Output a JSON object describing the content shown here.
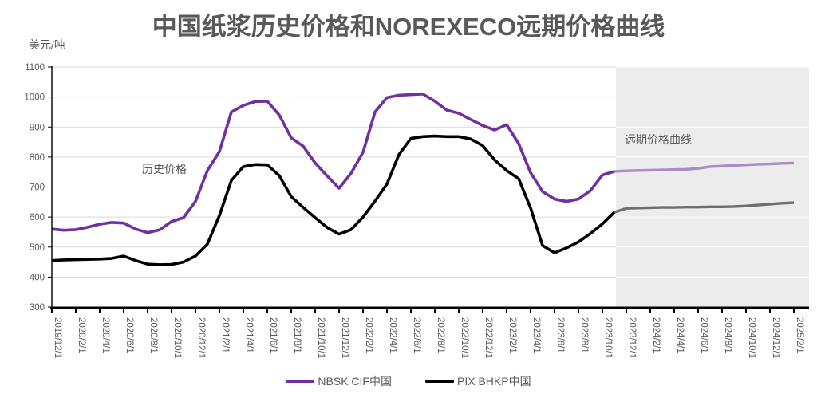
{
  "title": "中国纸浆历史价格和NOREXECO远期价格曲线",
  "y_axis_unit": "美元/吨",
  "annotations": {
    "historical": "历史价格",
    "forward": "远期价格曲线"
  },
  "legend": {
    "items": [
      {
        "label": "NBSK CIF中国",
        "color": "#7030A0"
      },
      {
        "label": "PIX BHKP中国",
        "color": "#000000"
      }
    ]
  },
  "colors": {
    "gridline": "#d9d9d9",
    "gridline_in_shade": "#ffffff",
    "axis": "#000000",
    "tick_label": "#595959",
    "forward_shade": "#ececec"
  },
  "chart_data": {
    "type": "line",
    "title": "中国纸浆历史价格和NOREXECO远期价格曲线",
    "ylabel": "美元/吨",
    "ylim": [
      300,
      1100
    ],
    "y_tick_step": 100,
    "grid": "horizontal",
    "legend_position": "bottom",
    "x_tick_labels": [
      "2019/12/1",
      "2020/2/1",
      "2020/4/1",
      "2020/6/1",
      "2020/8/1",
      "2020/10/1",
      "2020/12/1",
      "2021/2/1",
      "2021/4/1",
      "2021/6/1",
      "2021/8/1",
      "2021/10/1",
      "2021/12/1",
      "2022/2/1",
      "2022/4/1",
      "2022/6/1",
      "2022/8/1",
      "2022/10/1",
      "2022/12/1",
      "2023/2/1",
      "2023/4/1",
      "2023/6/1",
      "2023/8/1",
      "2023/10/1",
      "2023/12/1",
      "2024/2/1",
      "2024/4/1",
      "2024/6/1",
      "2024/8/1",
      "2024/10/1",
      "2024/12/1",
      "2025/2/1"
    ],
    "months_per_tick": 2,
    "forward_start_index": 47,
    "series": [
      {
        "name": "NBSK CIF中国",
        "color": "#7030A0",
        "forward_color": "#a98bc7",
        "values": [
          560,
          556,
          558,
          566,
          576,
          582,
          580,
          560,
          548,
          557,
          585,
          598,
          652,
          755,
          818,
          950,
          972,
          985,
          986,
          940,
          864,
          836,
          780,
          737,
          696,
          746,
          816,
          950,
          998,
          1006,
          1008,
          1010,
          986,
          956,
          946,
          925,
          905,
          890,
          908,
          845,
          748,
          685,
          660,
          652,
          660,
          688,
          740,
          752,
          754,
          755,
          756,
          757,
          758,
          759,
          762,
          768,
          770,
          772,
          774,
          776,
          777,
          779,
          780
        ]
      },
      {
        "name": "PIX BHKP中国",
        "color": "#000000",
        "forward_color": "#6e6e6e",
        "values": [
          455,
          457,
          458,
          459,
          460,
          462,
          470,
          455,
          443,
          441,
          442,
          450,
          470,
          510,
          605,
          722,
          768,
          775,
          774,
          738,
          668,
          632,
          598,
          565,
          543,
          558,
          600,
          653,
          710,
          808,
          862,
          868,
          870,
          868,
          868,
          860,
          838,
          790,
          755,
          728,
          630,
          505,
          481,
          497,
          517,
          545,
          577,
          616,
          629,
          630,
          631,
          632,
          632,
          633,
          633,
          634,
          634,
          635,
          637,
          640,
          643,
          646,
          648
        ]
      }
    ]
  }
}
